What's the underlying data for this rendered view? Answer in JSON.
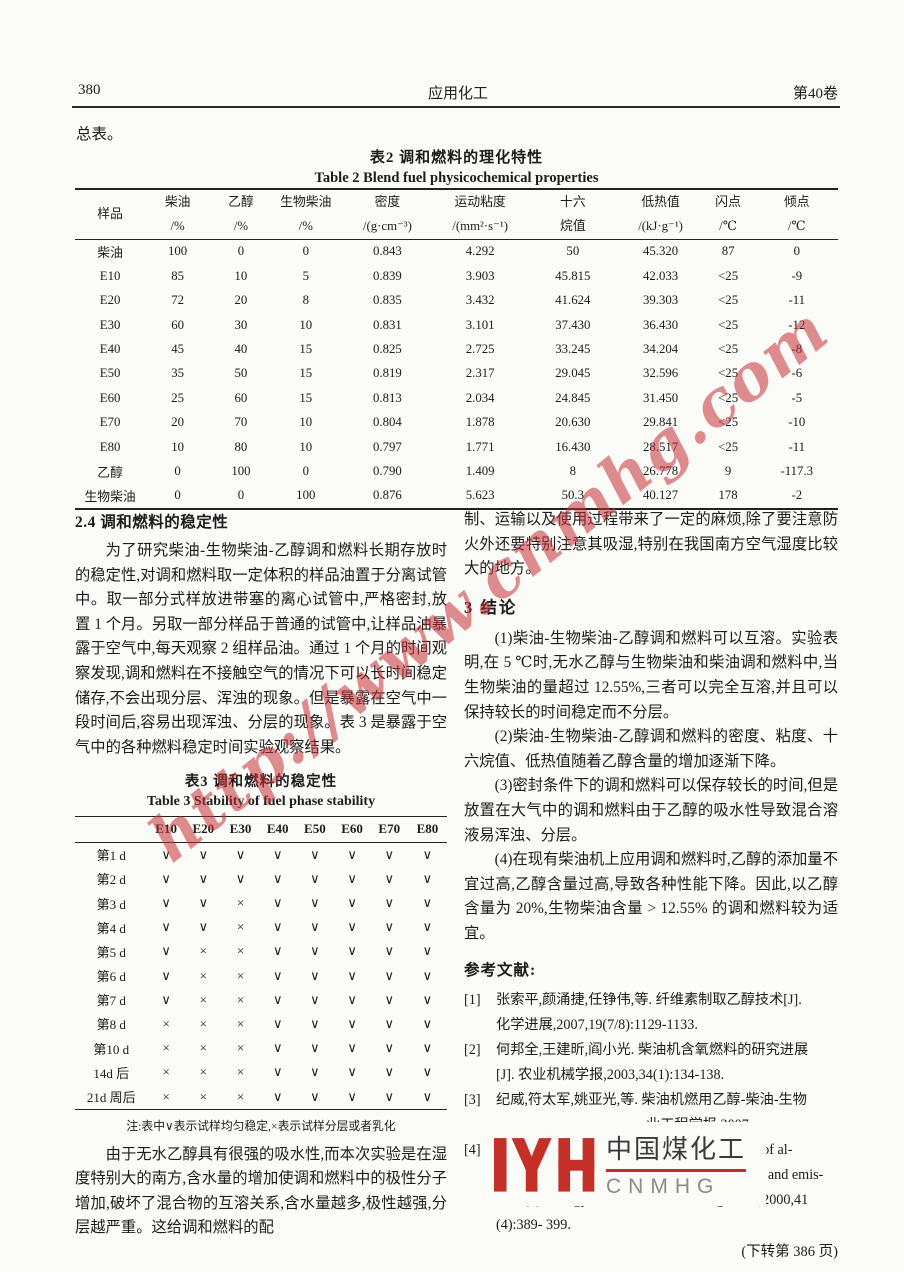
{
  "header": {
    "page_number": "380",
    "journal": "应用化工",
    "volume": "第40卷"
  },
  "intro_fragment": "总表。",
  "table2": {
    "caption_zh": "表2  调和燃料的理化特性",
    "caption_en": "Table 2  Blend fuel physicochemical properties",
    "columns": [
      {
        "l1": "样品",
        "l2": ""
      },
      {
        "l1": "柴油",
        "l2": "/%"
      },
      {
        "l1": "乙醇",
        "l2": "/%"
      },
      {
        "l1": "生物柴油",
        "l2": "/%"
      },
      {
        "l1": "密度",
        "l2": "/(g·cm⁻³)"
      },
      {
        "l1": "运动粘度",
        "l2": "/(mm²·s⁻¹)"
      },
      {
        "l1": "十六",
        "l2": "烷值"
      },
      {
        "l1": "低热值",
        "l2": "/(kJ·g⁻¹)"
      },
      {
        "l1": "闪点",
        "l2": "/℃"
      },
      {
        "l1": "倾点",
        "l2": "/℃"
      }
    ],
    "rows": [
      [
        "柴油",
        "100",
        "0",
        "0",
        "0.843",
        "4.292",
        "50",
        "45.320",
        "87",
        "0"
      ],
      [
        "E10",
        "85",
        "10",
        "5",
        "0.839",
        "3.903",
        "45.815",
        "42.033",
        "<25",
        "-9"
      ],
      [
        "E20",
        "72",
        "20",
        "8",
        "0.835",
        "3.432",
        "41.624",
        "39.303",
        "<25",
        "-11"
      ],
      [
        "E30",
        "60",
        "30",
        "10",
        "0.831",
        "3.101",
        "37.430",
        "36.430",
        "<25",
        "-12"
      ],
      [
        "E40",
        "45",
        "40",
        "15",
        "0.825",
        "2.725",
        "33.245",
        "34.204",
        "<25",
        "-8"
      ],
      [
        "E50",
        "35",
        "50",
        "15",
        "0.819",
        "2.317",
        "29.045",
        "32.596",
        "<25",
        "-6"
      ],
      [
        "E60",
        "25",
        "60",
        "15",
        "0.813",
        "2.034",
        "24.845",
        "31.450",
        "<25",
        "-5"
      ],
      [
        "E70",
        "20",
        "70",
        "10",
        "0.804",
        "1.878",
        "20.630",
        "29.841",
        "<25",
        "-10"
      ],
      [
        "E80",
        "10",
        "80",
        "10",
        "0.797",
        "1.771",
        "16.430",
        "28.517",
        "<25",
        "-11"
      ],
      [
        "乙醇",
        "0",
        "100",
        "0",
        "0.790",
        "1.409",
        "8",
        "26.778",
        "9",
        "-117.3"
      ],
      [
        "生物柴油",
        "0",
        "0",
        "100",
        "0.876",
        "5.623",
        "50.3",
        "40.127",
        "178",
        "-2"
      ]
    ]
  },
  "left_column": {
    "section_heading": "2.4  调和燃料的稳定性",
    "paragraph1": "为了研究柴油-生物柴油-乙醇调和燃料长期存放时的稳定性,对调和燃料取一定体积的样品油置于分离试管中。取一部分式样放进带塞的离心试管中,严格密封,放置 1 个月。另取一部分样品于普通的试管中,让样品油暴露于空气中,每天观察 2 组样品油。通过 1 个月的时间观察发现,调和燃料在不接触空气的情况下可以长时间稳定储存,不会出现分层、浑浊的现象。但是暴露在空气中一段时间后,容易出现浑浊、分层的现象。表 3 是暴露于空气中的各种燃料稳定时间实验观察结果。",
    "paragraph2": "由于无水乙醇具有很强的吸水性,而本次实验是在湿度特别大的南方,含水量的增加使调和燃料中的极性分子增加,破坏了混合物的互溶关系,含水量越多,极性越强,分层越严重。这给调和燃料的配"
  },
  "table3": {
    "caption_zh": "表3  调和燃料的稳定性",
    "caption_en": "Table 3  Stability of fuel phase stability",
    "columns": [
      "",
      "E10",
      "E20",
      "E30",
      "E40",
      "E50",
      "E60",
      "E70",
      "E80"
    ],
    "rows": [
      [
        "第1 d",
        "∨",
        "∨",
        "∨",
        "∨",
        "∨",
        "∨",
        "∨",
        "∨"
      ],
      [
        "第2 d",
        "∨",
        "∨",
        "∨",
        "∨",
        "∨",
        "∨",
        "∨",
        "∨"
      ],
      [
        "第3 d",
        "∨",
        "∨",
        "×",
        "∨",
        "∨",
        "∨",
        "∨",
        "∨"
      ],
      [
        "第4 d",
        "∨",
        "∨",
        "×",
        "∨",
        "∨",
        "∨",
        "∨",
        "∨"
      ],
      [
        "第5 d",
        "∨",
        "×",
        "×",
        "∨",
        "∨",
        "∨",
        "∨",
        "∨"
      ],
      [
        "第6 d",
        "∨",
        "×",
        "×",
        "∨",
        "∨",
        "∨",
        "∨",
        "∨"
      ],
      [
        "第7 d",
        "∨",
        "×",
        "×",
        "∨",
        "∨",
        "∨",
        "∨",
        "∨"
      ],
      [
        "第8 d",
        "×",
        "×",
        "×",
        "∨",
        "∨",
        "∨",
        "∨",
        "∨"
      ],
      [
        "第10 d",
        "×",
        "×",
        "×",
        "∨",
        "∨",
        "∨",
        "∨",
        "∨"
      ],
      [
        "14d 后",
        "×",
        "×",
        "×",
        "∨",
        "∨",
        "∨",
        "∨",
        "∨"
      ],
      [
        "21d 周后",
        "×",
        "×",
        "×",
        "∨",
        "∨",
        "∨",
        "∨",
        "∨"
      ]
    ],
    "note": "注:表中∨表示试样均匀稳定,×表示试样分层或者乳化"
  },
  "right_column": {
    "intro_paragraph": "制、运输以及使用过程带来了一定的麻烦,除了要注意防火外还要特别注意其吸湿,特别在我国南方空气湿度比较大的地方。",
    "section_heading": "3  结论",
    "conclusion_paragraphs": [
      "(1)柴油-生物柴油-乙醇调和燃料可以互溶。实验表明,在 5 ℃时,无水乙醇与生物柴油和柴油调和燃料中,当生物柴油的量超过 12.55%,三者可以完全互溶,并且可以保持较长的时间稳定而不分层。",
      "(2)柴油-生物柴油-乙醇调和燃料的密度、粘度、十六烷值、低热值随着乙醇含量的增加逐渐下降。",
      "(3)密封条件下的调和燃料可以保存较长的时间,但是放置在大气中的调和燃料由于乙醇的吸水性导致混合溶液易浑浊、分层。",
      "(4)在现有柴油机上应用调和燃料时,乙醇的添加量不宜过高,乙醇含量过高,导致各种性能下降。因此,以乙醇含量为 20%,生物柴油含量 > 12.55% 的调和燃料较为适宜。"
    ],
    "references_heading": "参考文献:",
    "references": [
      {
        "label": "[1]",
        "lines": [
          "张索平,颜涌捷,任铮伟,等. 纤维素制取乙醇技术[J].",
          "化学进展,2007,19(7/8):1129-1133."
        ]
      },
      {
        "label": "[2]",
        "lines": [
          "何邦全,王建昕,阎小光. 柴油机含氧燃料的研究进展",
          "[J]. 农业机械学报,2003,34(1):134-138."
        ]
      },
      {
        "label": "[3]",
        "lines": [
          "纪威,符太军,姚亚光,等. 柴油机燃用乙醇-柴油-生物",
          "业工程学报,2007,"
        ]
      },
      {
        "label": "[4]",
        "lines": [
          "t M. The effect of al-",
          "cohol fumigation on diesel engine performance and emis-",
          "sions[J]. Energy Conversion and Management,2000,41",
          "(4):389- 399."
        ]
      }
    ],
    "continued_note": "(下转第 386 页)"
  },
  "watermark": {
    "text": "http://www.cnmhg.com",
    "color": "#c63037"
  },
  "logo": {
    "zh": "中国煤化工",
    "en": "CNMHG",
    "mark_color": "#c43028"
  }
}
